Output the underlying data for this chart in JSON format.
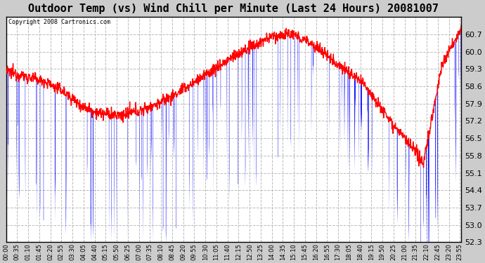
{
  "title": "Outdoor Temp (vs) Wind Chill per Minute (Last 24 Hours) 20081007",
  "copyright_text": "Copyright 2008 Cartronics.com",
  "ylim": [
    52.3,
    61.4
  ],
  "yticks": [
    52.3,
    53.0,
    53.7,
    54.4,
    55.1,
    55.8,
    56.5,
    57.2,
    57.9,
    58.6,
    59.3,
    60.0,
    60.7
  ],
  "background_color": "#ffffff",
  "grid_color": "#bbbbbb",
  "plot_bg_color": "#ffffff",
  "outer_bg_color": "#cccccc",
  "temp_color": "#ff0000",
  "windchill_color": "#0000ff",
  "title_fontsize": 11,
  "n_minutes": 1440,
  "x_tick_interval": 35,
  "temp_control_hours": [
    0,
    1,
    2,
    3,
    4,
    5,
    6,
    7,
    8,
    9,
    10,
    11,
    12,
    13,
    14,
    15,
    16,
    17,
    18,
    19,
    20,
    21,
    22,
    23,
    24
  ],
  "temp_control_values": [
    59.2,
    59.0,
    58.8,
    58.4,
    57.8,
    57.5,
    57.4,
    57.6,
    57.9,
    58.3,
    58.8,
    59.3,
    59.8,
    60.2,
    60.6,
    60.7,
    60.4,
    59.8,
    59.2,
    58.6,
    57.5,
    56.5,
    55.5,
    59.5,
    60.9
  ]
}
